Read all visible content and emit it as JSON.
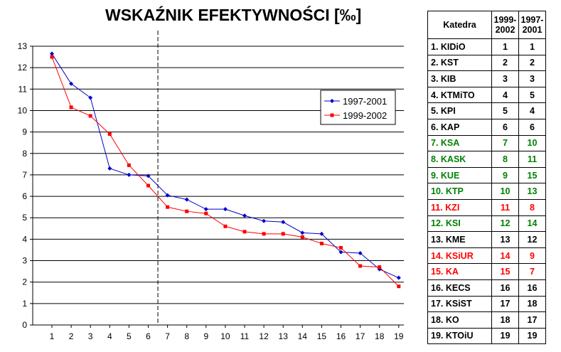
{
  "chart_data": {
    "type": "line",
    "title": "WSKAŹNIK EFEKTYWNOŚCI  [‰]",
    "x": [
      1,
      2,
      3,
      4,
      5,
      6,
      7,
      8,
      9,
      10,
      11,
      12,
      13,
      14,
      15,
      16,
      17,
      18,
      19
    ],
    "ylim": [
      0,
      13
    ],
    "yticks": [
      0,
      1,
      2,
      3,
      4,
      5,
      6,
      7,
      8,
      9,
      10,
      11,
      12,
      13
    ],
    "grid": "horizontal",
    "reference_line_x": 6.5,
    "legend": "right",
    "series": [
      {
        "name": "1997-2001",
        "color": "#0000cc",
        "marker": "diamond",
        "values": [
          12.65,
          11.25,
          10.6,
          7.3,
          7.0,
          6.95,
          6.05,
          5.85,
          5.4,
          5.4,
          5.1,
          4.85,
          4.8,
          4.3,
          4.25,
          3.4,
          3.35,
          2.6,
          2.2
        ]
      },
      {
        "name": "1999-2002",
        "color": "#ff0000",
        "marker": "square",
        "values": [
          12.5,
          10.15,
          9.75,
          8.9,
          7.45,
          6.5,
          5.5,
          5.3,
          5.2,
          4.6,
          4.35,
          4.25,
          4.25,
          4.1,
          3.8,
          3.6,
          2.75,
          2.7,
          1.8
        ]
      }
    ]
  },
  "table": {
    "headers": [
      "Katedra",
      "1999-2002",
      "1997-2001"
    ],
    "header_lines": [
      [
        "Katedra"
      ],
      [
        "1999-",
        "2002"
      ],
      [
        "1997-",
        "2001"
      ]
    ],
    "rows": [
      {
        "name": "1. KIDiO",
        "a": "1",
        "b": "1",
        "color": "#000000"
      },
      {
        "name": "2. KST",
        "a": "2",
        "b": "2",
        "color": "#000000"
      },
      {
        "name": "3. KIB",
        "a": "3",
        "b": "3",
        "color": "#000000"
      },
      {
        "name": "4. KTMiTO",
        "a": "4",
        "b": "5",
        "color": "#000000"
      },
      {
        "name": "5. KPI",
        "a": "5",
        "b": "4",
        "color": "#000000"
      },
      {
        "name": "6. KAP",
        "a": "6",
        "b": "6",
        "color": "#000000"
      },
      {
        "name": "7. KSA",
        "a": "7",
        "b": "10",
        "color": "#008000"
      },
      {
        "name": "8. KASK",
        "a": "8",
        "b": "11",
        "color": "#008000"
      },
      {
        "name": "9. KUE",
        "a": "9",
        "b": "15",
        "color": "#008000"
      },
      {
        "name": "10. KTP",
        "a": "10",
        "b": "13",
        "color": "#008000"
      },
      {
        "name": "11. KZI",
        "a": "11",
        "b": "8",
        "color": "#ff0000"
      },
      {
        "name": "12. KSI",
        "a": "12",
        "b": "14",
        "color": "#008000"
      },
      {
        "name": "13. KME",
        "a": "13",
        "b": "12",
        "color": "#000000"
      },
      {
        "name": "14. KSiUR",
        "a": "14",
        "b": "9",
        "color": "#ff0000"
      },
      {
        "name": "15. KA",
        "a": "15",
        "b": "7",
        "color": "#ff0000"
      },
      {
        "name": "16. KECS",
        "a": "16",
        "b": "16",
        "color": "#000000"
      },
      {
        "name": "17. KSiST",
        "a": "17",
        "b": "18",
        "color": "#000000"
      },
      {
        "name": "18. KO",
        "a": "18",
        "b": "17",
        "color": "#000000"
      },
      {
        "name": "19. KTOiU",
        "a": "19",
        "b": "19",
        "color": "#000000"
      }
    ]
  }
}
